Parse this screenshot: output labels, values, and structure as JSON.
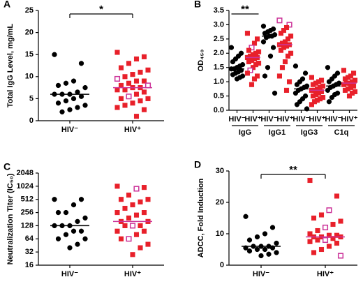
{
  "chart_data": [
    {
      "type": "dot",
      "panel": "A",
      "ylabel": "Total IgG Level, mg/mL",
      "categories": [
        "HIV⁻",
        "HIV⁺"
      ],
      "colors": [
        "#000000",
        "#e8202a"
      ],
      "markers": [
        "circle",
        "square"
      ],
      "hollow_color": "#cc3399",
      "ylim": [
        0,
        25
      ],
      "yticks": [
        0,
        5,
        10,
        15,
        20,
        25
      ],
      "significance": "*",
      "groups": [
        {
          "values": [
            [
              15,
              13,
              9,
              8.5,
              8,
              7.5,
              6.5,
              6,
              6,
              6,
              5.5,
              5,
              4.5,
              4,
              3.5,
              3,
              2.5,
              2
            ],
            [
              15.5,
              14.5,
              14,
              13,
              12,
              11.5,
              11,
              10.5,
              10,
              9.5,
              9,
              9,
              8.5,
              8,
              8,
              7.5,
              7.5,
              7,
              7,
              6.5,
              6,
              5.5,
              5,
              5,
              4.5,
              4,
              3.5,
              3,
              2.5,
              1
            ]
          ],
          "medians": [
            6,
            7.5
          ],
          "hollow": [
            9,
            14,
            21
          ]
        }
      ]
    },
    {
      "type": "dot",
      "panel": "B",
      "ylabel": "OD₄₅₀",
      "categories": [
        "HIV⁻",
        "HIV⁺"
      ],
      "colors": [
        "#000000",
        "#e8202a"
      ],
      "markers": [
        "circle",
        "square"
      ],
      "hollow_color": "#cc3399",
      "ylim": [
        0,
        3.5
      ],
      "yticks": [
        {
          "value": 0,
          "label": "0.0"
        },
        0.5,
        {
          "value": 1,
          "label": "1.0"
        },
        1.5,
        {
          "value": 2,
          "label": "2.0"
        },
        2.5,
        {
          "value": 3,
          "label": "3.0"
        },
        3.5
      ],
      "significance": "**",
      "groups": [
        {
          "name": "IgG",
          "values": [
            [
              2.2,
              2.0,
              1.9,
              1.8,
              1.7,
              1.6,
              1.55,
              1.5,
              1.45,
              1.45,
              1.4,
              1.35,
              1.3,
              1.25,
              1.2,
              1.15,
              1.1
            ],
            [
              2.7,
              2.5,
              2.35,
              2.2,
              2.1,
              2.05,
              2.0,
              1.95,
              1.9,
              1.85,
              1.85,
              1.8,
              1.75,
              1.7,
              1.65,
              1.6,
              1.5,
              1.4,
              1.3,
              1.2,
              1.1,
              0.9
            ]
          ],
          "medians": [
            1.45,
            1.85
          ],
          "hollow": [
            3,
            17
          ]
        },
        {
          "name": "IgG1",
          "values": [
            [
              2.95,
              2.85,
              2.8,
              2.75,
              2.7,
              2.65,
              2.6,
              2.6,
              2.55,
              2.4,
              2.2,
              1.9,
              1.5,
              1.2,
              0.6
            ],
            [
              3.15,
              3.0,
              2.9,
              2.8,
              2.7,
              2.6,
              2.5,
              2.4,
              2.35,
              2.3,
              2.3,
              2.25,
              2.2,
              2.1,
              2.0,
              1.9,
              1.7,
              1.5,
              1.2,
              1.0,
              0.7
            ]
          ],
          "medians": [
            2.6,
            2.3
          ],
          "hollow": [
            0,
            1
          ]
        },
        {
          "name": "IgG3",
          "values": [
            [
              1.55,
              1.3,
              1.1,
              1.0,
              0.9,
              0.85,
              0.8,
              0.75,
              0.7,
              0.6,
              0.5,
              0.4,
              0.3,
              0.2,
              0.05
            ],
            [
              1.15,
              1.05,
              1.0,
              0.95,
              0.9,
              0.85,
              0.8,
              0.75,
              0.7,
              0.7,
              0.65,
              0.6,
              0.55,
              0.5,
              0.45,
              0.4,
              0.35,
              0.3,
              0.2
            ]
          ],
          "medians": [
            0.75,
            0.7
          ],
          "hollow": []
        },
        {
          "name": "C1q",
          "values": [
            [
              1.5,
              1.3,
              1.2,
              1.1,
              1.0,
              0.95,
              0.9,
              0.85,
              0.8,
              0.7,
              0.6,
              0.55,
              0.45,
              0.3
            ],
            [
              1.4,
              1.3,
              1.2,
              1.15,
              1.1,
              1.05,
              1.0,
              0.95,
              0.95,
              0.9,
              0.85,
              0.8,
              0.75,
              0.7,
              0.65,
              0.6,
              0.5
            ]
          ],
          "medians": [
            0.85,
            0.95
          ],
          "hollow": []
        }
      ]
    },
    {
      "type": "dot",
      "panel": "C",
      "ylabel": "Neutralization Titer (IC₅₀)",
      "categories": [
        "HIV⁻",
        "HIV⁺"
      ],
      "colors": [
        "#000000",
        "#e8202a"
      ],
      "markers": [
        "circle",
        "square"
      ],
      "hollow_color": "#cc3399",
      "log_scale": true,
      "ylim": [
        16,
        2048
      ],
      "yticks": [
        16,
        32,
        64,
        128,
        256,
        512,
        1024,
        2048
      ],
      "groups": [
        {
          "values": [
            [
              512,
              512,
              384,
              256,
              256,
              192,
              160,
              128,
              128,
              128,
              96,
              96,
              80,
              64,
              64,
              48,
              40
            ],
            [
              1024,
              960,
              896,
              640,
              512,
              512,
              448,
              384,
              320,
              256,
              256,
              224,
              192,
              160,
              160,
              128,
              128,
              128,
              96,
              96,
              80,
              64,
              64,
              48,
              40,
              28
            ]
          ],
          "medians": [
            128,
            160
          ],
          "hollow": [
            2,
            16,
            21
          ]
        }
      ]
    },
    {
      "type": "dot",
      "panel": "D",
      "ylabel": "ADCC, Fold Induction",
      "categories": [
        "HIV⁻",
        "HIV⁺"
      ],
      "colors": [
        "#000000",
        "#e8202a"
      ],
      "markers": [
        "circle",
        "square"
      ],
      "hollow_color": "#cc3399",
      "ylim": [
        0,
        30
      ],
      "yticks": [
        0,
        10,
        20,
        30
      ],
      "significance": "**",
      "groups": [
        {
          "values": [
            [
              15.5,
              12,
              10,
              9,
              8,
              7,
              6,
              6,
              6,
              5.5,
              5.5,
              5,
              5,
              4.5,
              4,
              3.5,
              3
            ],
            [
              27,
              22,
              17.5,
              16,
              15,
              14,
              13,
              12,
              11,
              10,
              9.5,
              9.5,
              9,
              9,
              9,
              8.5,
              8,
              8,
              7.5,
              7,
              6,
              5,
              4,
              3
            ]
          ],
          "medians": [
            6,
            9
          ],
          "hollow": [
            2,
            7,
            16,
            23
          ]
        }
      ]
    }
  ]
}
